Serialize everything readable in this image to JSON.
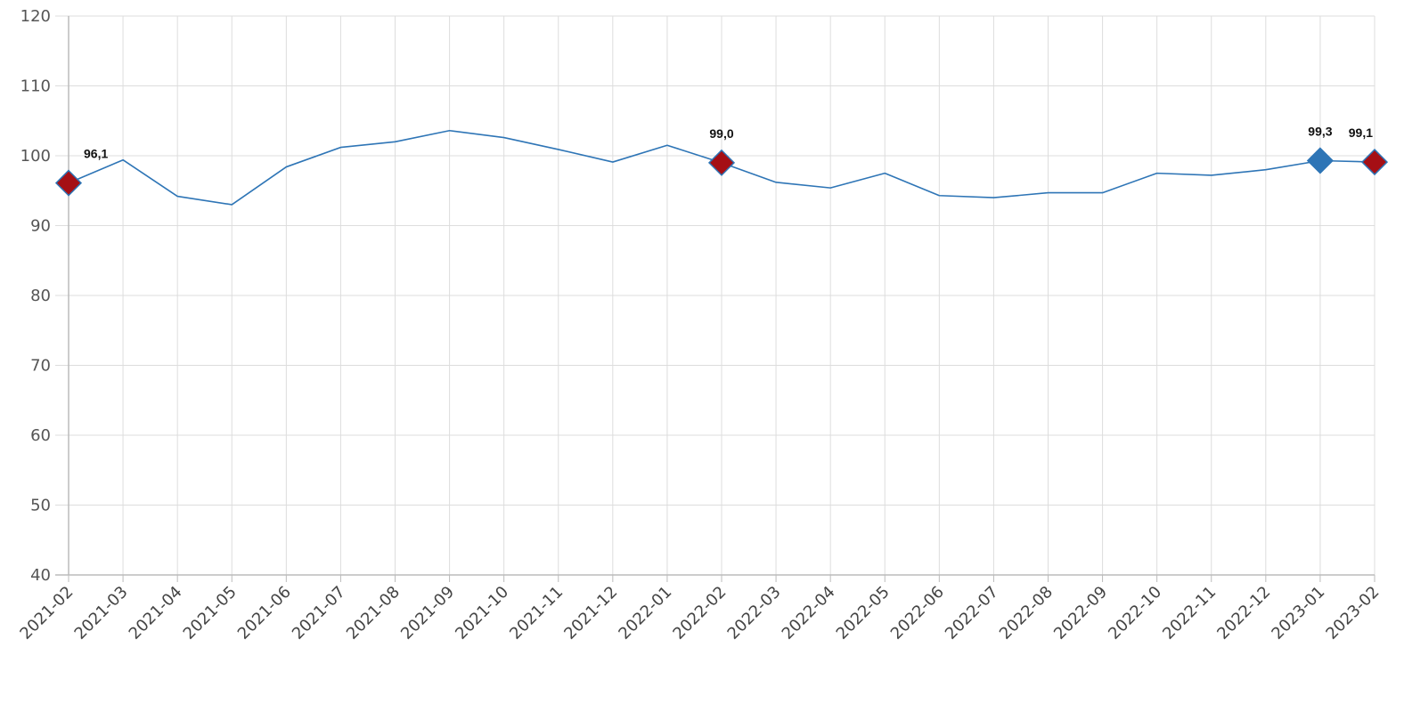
{
  "chart_data": {
    "type": "line",
    "title": "",
    "xlabel": "",
    "ylabel": "",
    "ylim": [
      40,
      120
    ],
    "y_ticks": [
      "40",
      "50",
      "60",
      "70",
      "80",
      "90",
      "100",
      "110",
      "120"
    ],
    "grid": true,
    "categories": [
      "2021-02",
      "2021-03",
      "2021-04",
      "2021-05",
      "2021-06",
      "2021-07",
      "2021-08",
      "2021-09",
      "2021-10",
      "2021-11",
      "2021-12",
      "2022-01",
      "2022-02",
      "2022-03",
      "2022-04",
      "2022-05",
      "2022-06",
      "2022-07",
      "2022-08",
      "2022-09",
      "2022-10",
      "2022-11",
      "2022-12",
      "2023-01",
      "2023-02"
    ],
    "series": [
      {
        "values": [
          96.1,
          99.4,
          94.2,
          93.0,
          98.4,
          101.2,
          102.0,
          103.6,
          102.6,
          100.9,
          99.1,
          101.5,
          99.0,
          96.2,
          95.4,
          97.5,
          94.3,
          94.0,
          94.7,
          94.7,
          97.5,
          97.2,
          98.0,
          99.3,
          99.1
        ],
        "color": "#2e75b6"
      }
    ],
    "highlights": [
      {
        "index": 0,
        "label": "96,1",
        "color": "#a50f15"
      },
      {
        "index": 12,
        "label": "99,0",
        "color": "#a50f15"
      },
      {
        "index": 23,
        "label": "99,3",
        "color": "#2e75b6"
      },
      {
        "index": 24,
        "label": "99,1",
        "color": "#a50f15"
      }
    ]
  }
}
